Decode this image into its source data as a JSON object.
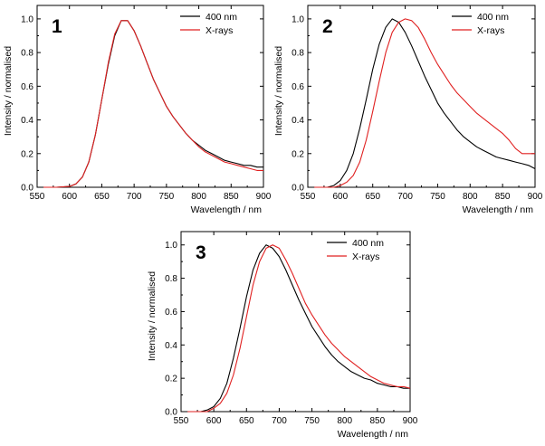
{
  "chart_data": [
    {
      "type": "line",
      "panel_label": "1",
      "xlabel": "Wavelength / nm",
      "ylabel": "Intensity / normalised",
      "xlim": [
        550,
        900
      ],
      "ylim": [
        0.0,
        1.08
      ],
      "xticks": [
        550,
        600,
        650,
        700,
        750,
        800,
        850,
        900
      ],
      "yticks": [
        0.0,
        0.2,
        0.4,
        0.6,
        0.8,
        1.0
      ],
      "ytick_labels": [
        "0.0",
        "0.2",
        "0.4",
        "0.6",
        "0.8",
        "1.0"
      ],
      "legend": "top-right",
      "series": [
        {
          "name": "400 nm",
          "color": "#000000",
          "x": [
            560,
            580,
            600,
            610,
            620,
            630,
            640,
            650,
            660,
            670,
            680,
            690,
            700,
            710,
            720,
            730,
            740,
            750,
            760,
            770,
            780,
            790,
            800,
            810,
            820,
            830,
            840,
            850,
            860,
            870,
            880,
            890,
            900
          ],
          "y": [
            0.0,
            0.0,
            0.005,
            0.02,
            0.06,
            0.15,
            0.31,
            0.52,
            0.73,
            0.9,
            0.99,
            0.99,
            0.93,
            0.84,
            0.74,
            0.64,
            0.56,
            0.48,
            0.42,
            0.37,
            0.32,
            0.28,
            0.25,
            0.22,
            0.2,
            0.18,
            0.16,
            0.15,
            0.14,
            0.13,
            0.13,
            0.12,
            0.12
          ]
        },
        {
          "name": "X-rays",
          "color": "#e02020",
          "x": [
            560,
            580,
            600,
            610,
            620,
            630,
            640,
            650,
            660,
            670,
            680,
            690,
            700,
            710,
            720,
            730,
            740,
            750,
            760,
            770,
            780,
            790,
            800,
            810,
            820,
            830,
            840,
            850,
            860,
            870,
            880,
            890,
            900
          ],
          "y": [
            0.0,
            0.0,
            0.005,
            0.02,
            0.06,
            0.15,
            0.31,
            0.52,
            0.74,
            0.91,
            0.99,
            0.99,
            0.93,
            0.84,
            0.74,
            0.64,
            0.56,
            0.48,
            0.42,
            0.37,
            0.32,
            0.28,
            0.24,
            0.21,
            0.19,
            0.17,
            0.15,
            0.14,
            0.13,
            0.12,
            0.11,
            0.1,
            0.1
          ]
        }
      ]
    },
    {
      "type": "line",
      "panel_label": "2",
      "xlabel": "Wavelength / nm",
      "ylabel": "Intensity / normalised",
      "xlim": [
        550,
        900
      ],
      "ylim": [
        0.0,
        1.08
      ],
      "xticks": [
        550,
        600,
        650,
        700,
        750,
        800,
        850,
        900
      ],
      "yticks": [
        0.0,
        0.2,
        0.4,
        0.6,
        0.8,
        1.0
      ],
      "ytick_labels": [
        "0.0",
        "0.2",
        "0.4",
        "0.6",
        "0.8",
        "1.0"
      ],
      "legend": "top-right",
      "series": [
        {
          "name": "400 nm",
          "color": "#000000",
          "x": [
            560,
            580,
            590,
            600,
            610,
            620,
            630,
            640,
            650,
            660,
            670,
            680,
            690,
            700,
            710,
            720,
            730,
            740,
            750,
            760,
            770,
            780,
            790,
            800,
            810,
            820,
            830,
            840,
            850,
            860,
            870,
            880,
            890,
            900
          ],
          "y": [
            0.0,
            0.0,
            0.01,
            0.04,
            0.1,
            0.2,
            0.35,
            0.52,
            0.7,
            0.85,
            0.95,
            1.0,
            0.98,
            0.92,
            0.84,
            0.75,
            0.66,
            0.58,
            0.5,
            0.44,
            0.39,
            0.34,
            0.3,
            0.27,
            0.24,
            0.22,
            0.2,
            0.18,
            0.17,
            0.16,
            0.15,
            0.14,
            0.13,
            0.11
          ]
        },
        {
          "name": "X-rays",
          "color": "#e02020",
          "x": [
            560,
            590,
            600,
            610,
            620,
            630,
            640,
            650,
            660,
            670,
            680,
            690,
            700,
            710,
            720,
            730,
            740,
            750,
            760,
            770,
            780,
            790,
            800,
            810,
            820,
            830,
            840,
            850,
            860,
            870,
            880,
            890,
            900
          ],
          "y": [
            0.0,
            0.0,
            0.01,
            0.03,
            0.07,
            0.15,
            0.28,
            0.45,
            0.63,
            0.8,
            0.92,
            0.98,
            1.0,
            0.99,
            0.95,
            0.88,
            0.8,
            0.73,
            0.67,
            0.61,
            0.56,
            0.52,
            0.48,
            0.44,
            0.41,
            0.38,
            0.35,
            0.32,
            0.28,
            0.23,
            0.2,
            0.2,
            0.2
          ]
        }
      ]
    },
    {
      "type": "line",
      "panel_label": "3",
      "xlabel": "Wavelength / nm",
      "ylabel": "Intensity / normalised",
      "xlim": [
        550,
        900
      ],
      "ylim": [
        0.0,
        1.08
      ],
      "xticks": [
        550,
        600,
        650,
        700,
        750,
        800,
        850,
        900
      ],
      "yticks": [
        0.0,
        0.2,
        0.4,
        0.6,
        0.8,
        1.0
      ],
      "ytick_labels": [
        "0.0",
        "0.2",
        "0.4",
        "0.6",
        "0.8",
        "1.0"
      ],
      "legend": "top-right",
      "series": [
        {
          "name": "400 nm",
          "color": "#000000",
          "x": [
            560,
            580,
            590,
            600,
            610,
            620,
            630,
            640,
            650,
            660,
            670,
            680,
            690,
            700,
            710,
            720,
            730,
            740,
            750,
            760,
            770,
            780,
            790,
            800,
            810,
            820,
            830,
            840,
            850,
            860,
            870,
            880,
            890,
            900
          ],
          "y": [
            0.0,
            0.0,
            0.01,
            0.03,
            0.08,
            0.17,
            0.32,
            0.5,
            0.69,
            0.85,
            0.95,
            1.0,
            0.98,
            0.93,
            0.85,
            0.76,
            0.67,
            0.59,
            0.51,
            0.45,
            0.39,
            0.34,
            0.3,
            0.27,
            0.24,
            0.22,
            0.2,
            0.19,
            0.17,
            0.16,
            0.15,
            0.15,
            0.14,
            0.14
          ]
        },
        {
          "name": "X-rays",
          "color": "#e02020",
          "x": [
            560,
            590,
            600,
            610,
            620,
            630,
            640,
            650,
            660,
            670,
            680,
            690,
            700,
            710,
            720,
            730,
            740,
            750,
            760,
            770,
            780,
            790,
            800,
            810,
            820,
            830,
            840,
            850,
            860,
            870,
            880,
            890,
            900
          ],
          "y": [
            0.0,
            0.0,
            0.02,
            0.05,
            0.11,
            0.22,
            0.38,
            0.57,
            0.76,
            0.9,
            0.98,
            1.0,
            0.98,
            0.91,
            0.83,
            0.74,
            0.65,
            0.58,
            0.52,
            0.46,
            0.41,
            0.37,
            0.33,
            0.3,
            0.27,
            0.24,
            0.21,
            0.19,
            0.17,
            0.16,
            0.15,
            0.15,
            0.14
          ]
        }
      ]
    }
  ]
}
